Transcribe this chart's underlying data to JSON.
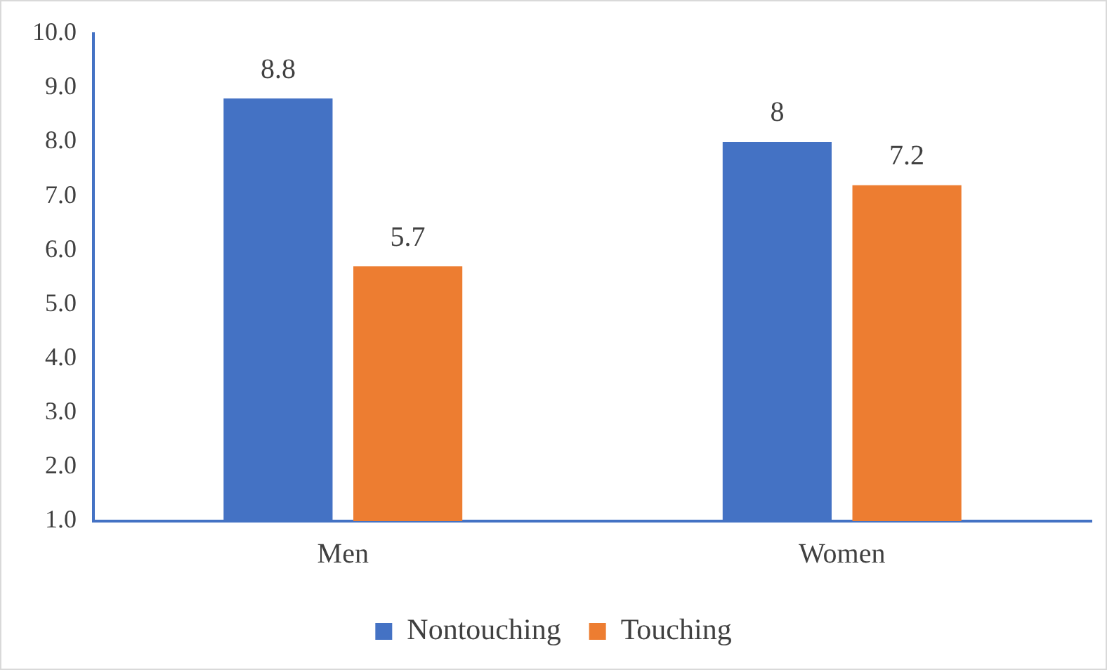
{
  "chart_data": {
    "type": "bar",
    "categories": [
      "Men",
      "Women"
    ],
    "series": [
      {
        "name": "Nontouching",
        "color": "#4472c4",
        "values": [
          8.8,
          8
        ]
      },
      {
        "name": "Touching",
        "color": "#ed7d31",
        "values": [
          5.7,
          7.2
        ]
      }
    ],
    "ylim": [
      1,
      10
    ],
    "yticks": [
      {
        "value": 1,
        "label": "1.0"
      },
      {
        "value": 2,
        "label": "2.0"
      },
      {
        "value": 3,
        "label": "3.0"
      },
      {
        "value": 4,
        "label": "4.0"
      },
      {
        "value": 5,
        "label": "5.0"
      },
      {
        "value": 6,
        "label": "6.0"
      },
      {
        "value": 7,
        "label": "7.0"
      },
      {
        "value": 8,
        "label": "8.0"
      },
      {
        "value": 9,
        "label": "9.0"
      },
      {
        "value": 10,
        "label": "10.0"
      }
    ],
    "grid": false,
    "legend": "bottom",
    "data_labels": true
  }
}
